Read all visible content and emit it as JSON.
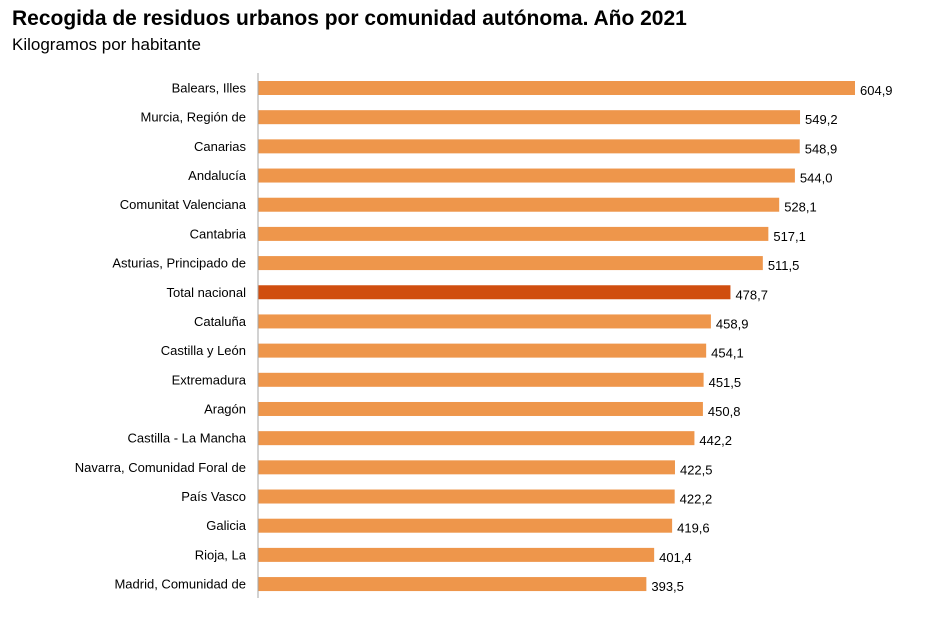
{
  "chart_data": {
    "type": "bar",
    "orientation": "horizontal",
    "title": "Recogida de residuos urbanos por comunidad autónoma. Año 2021",
    "subtitle": "Kilogramos por habitante",
    "categories": [
      "Balears, Illes",
      "Murcia, Región de",
      "Canarias",
      "Andalucía",
      "Comunitat Valenciana",
      "Cantabria",
      "Asturias, Principado de",
      "Total nacional",
      "Cataluña",
      "Castilla y León",
      "Extremadura",
      "Aragón",
      "Castilla - La Mancha",
      "Navarra, Comunidad Foral de",
      "País Vasco",
      "Galicia",
      "Rioja, La",
      "Madrid, Comunidad de"
    ],
    "values": [
      604.9,
      549.2,
      548.9,
      544.0,
      528.1,
      517.1,
      511.5,
      478.7,
      458.9,
      454.1,
      451.5,
      450.8,
      442.2,
      422.5,
      422.2,
      419.6,
      401.4,
      393.5
    ],
    "data_labels": [
      "604,9",
      "549,2",
      "548,9",
      "544,0",
      "528,1",
      "517,1",
      "511,5",
      "478,7",
      "458,9",
      "454,1",
      "451,5",
      "450,8",
      "442,2",
      "422,5",
      "422,2",
      "419,6",
      "401,4",
      "393,5"
    ],
    "highlight": "Total nacional",
    "xlim": [
      0,
      604.9
    ],
    "grid": false,
    "colors": {
      "bar": "#EE964B",
      "highlight": "#D04E0F",
      "axis": "#A6A6A6"
    }
  }
}
